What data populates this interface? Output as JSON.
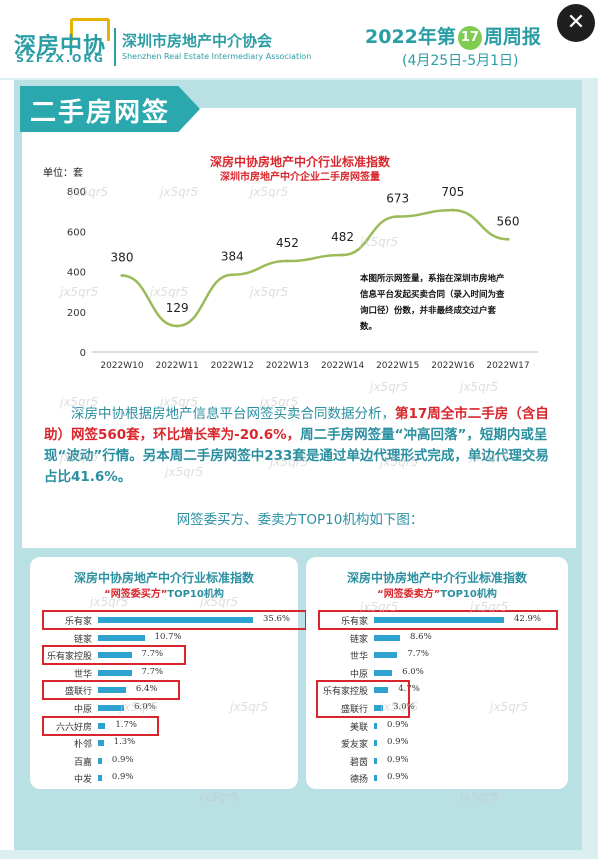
{
  "header": {
    "logo_cn": "深房中协",
    "logo_en": "SZFZX.ORG",
    "org_cn": "深圳市房地产中介协会",
    "org_en": "Shenzhen Real Estate Intermediary Association",
    "week_prefix": "2022年第",
    "week_number": "17",
    "week_suffix": "周周报",
    "date_range": "(4月25日-5月1日)",
    "close_label": "✕"
  },
  "section": {
    "title": "二手房网签"
  },
  "chart_data": {
    "type": "line",
    "title": "深房中协房地产中介行业标准指数",
    "subtitle": "深圳市房地产中介企业二手房网签量",
    "unit": "单位：套",
    "categories": [
      "2022W10",
      "2022W11",
      "2022W12",
      "2022W13",
      "2022W14",
      "2022W15",
      "2022W16",
      "2022W17"
    ],
    "values": [
      380,
      129,
      384,
      452,
      482,
      673,
      705,
      560
    ],
    "ylim": [
      0,
      800
    ],
    "yticks": [
      0,
      200,
      400,
      600,
      800
    ],
    "color": "#9bbb59",
    "note": "本图所示网签量，系指在深圳市房地产信息平台发起买卖合同（录入时间为查询口径）份数，并非最终成交过户套数。"
  },
  "paragraph": {
    "p1": "深房中协根据房地产信息平台网签买卖合同数据分析，",
    "p2": "第17周全市二手房（含自助）网签560套，环比增长率为-20.6%，",
    "p3": "周二手房网签量“冲高回落”，短期内或呈现“波动”行情。另本周二手房网签中233套是通过单边代理形式完成，单边代理交易占比41.6%。"
  },
  "intro": "网签委买方、委卖方TOP10机构如下图：",
  "buyer_panel": {
    "title": "深房中协房地产中介行业标准指数",
    "sub_red": "“网签委买方”",
    "sub_rest": "TOP10机构",
    "items": [
      {
        "name": "乐有家",
        "pct": 35.6,
        "label": "35.6%"
      },
      {
        "name": "链家",
        "pct": 10.7,
        "label": "10.7%"
      },
      {
        "name": "乐有家控股",
        "pct": 7.7,
        "label": "7.7%"
      },
      {
        "name": "世华",
        "pct": 7.7,
        "label": "7.7%"
      },
      {
        "name": "盛联行",
        "pct": 6.4,
        "label": "6.4%"
      },
      {
        "name": "中原",
        "pct": 6.0,
        "label": "6.0%"
      },
      {
        "name": "六六好房",
        "pct": 1.7,
        "label": "1.7%"
      },
      {
        "name": "朴邻",
        "pct": 1.3,
        "label": "1.3%"
      },
      {
        "name": "百嘉",
        "pct": 0.9,
        "label": "0.9%"
      },
      {
        "name": "中发",
        "pct": 0.9,
        "label": "0.9%"
      }
    ]
  },
  "seller_panel": {
    "title": "深房中协房地产中介行业标准指数",
    "sub_red": "“网签委卖方”",
    "sub_rest": "TOP10机构",
    "items": [
      {
        "name": "乐有家",
        "pct": 42.9,
        "label": "42.9%"
      },
      {
        "name": "链家",
        "pct": 8.6,
        "label": "8.6%"
      },
      {
        "name": "世华",
        "pct": 7.7,
        "label": "7.7%"
      },
      {
        "name": "中原",
        "pct": 6.0,
        "label": "6.0%"
      },
      {
        "name": "乐有家控股",
        "pct": 4.7,
        "label": "4.7%"
      },
      {
        "name": "盛联行",
        "pct": 3.0,
        "label": "3.0%"
      },
      {
        "name": "美联",
        "pct": 0.9,
        "label": "0.9%"
      },
      {
        "name": "爱友家",
        "pct": 0.9,
        "label": "0.9%"
      },
      {
        "name": "碧茵",
        "pct": 0.9,
        "label": "0.9%"
      },
      {
        "name": "德扬",
        "pct": 0.9,
        "label": "0.9%"
      }
    ]
  },
  "watermark": "jx5qr5"
}
